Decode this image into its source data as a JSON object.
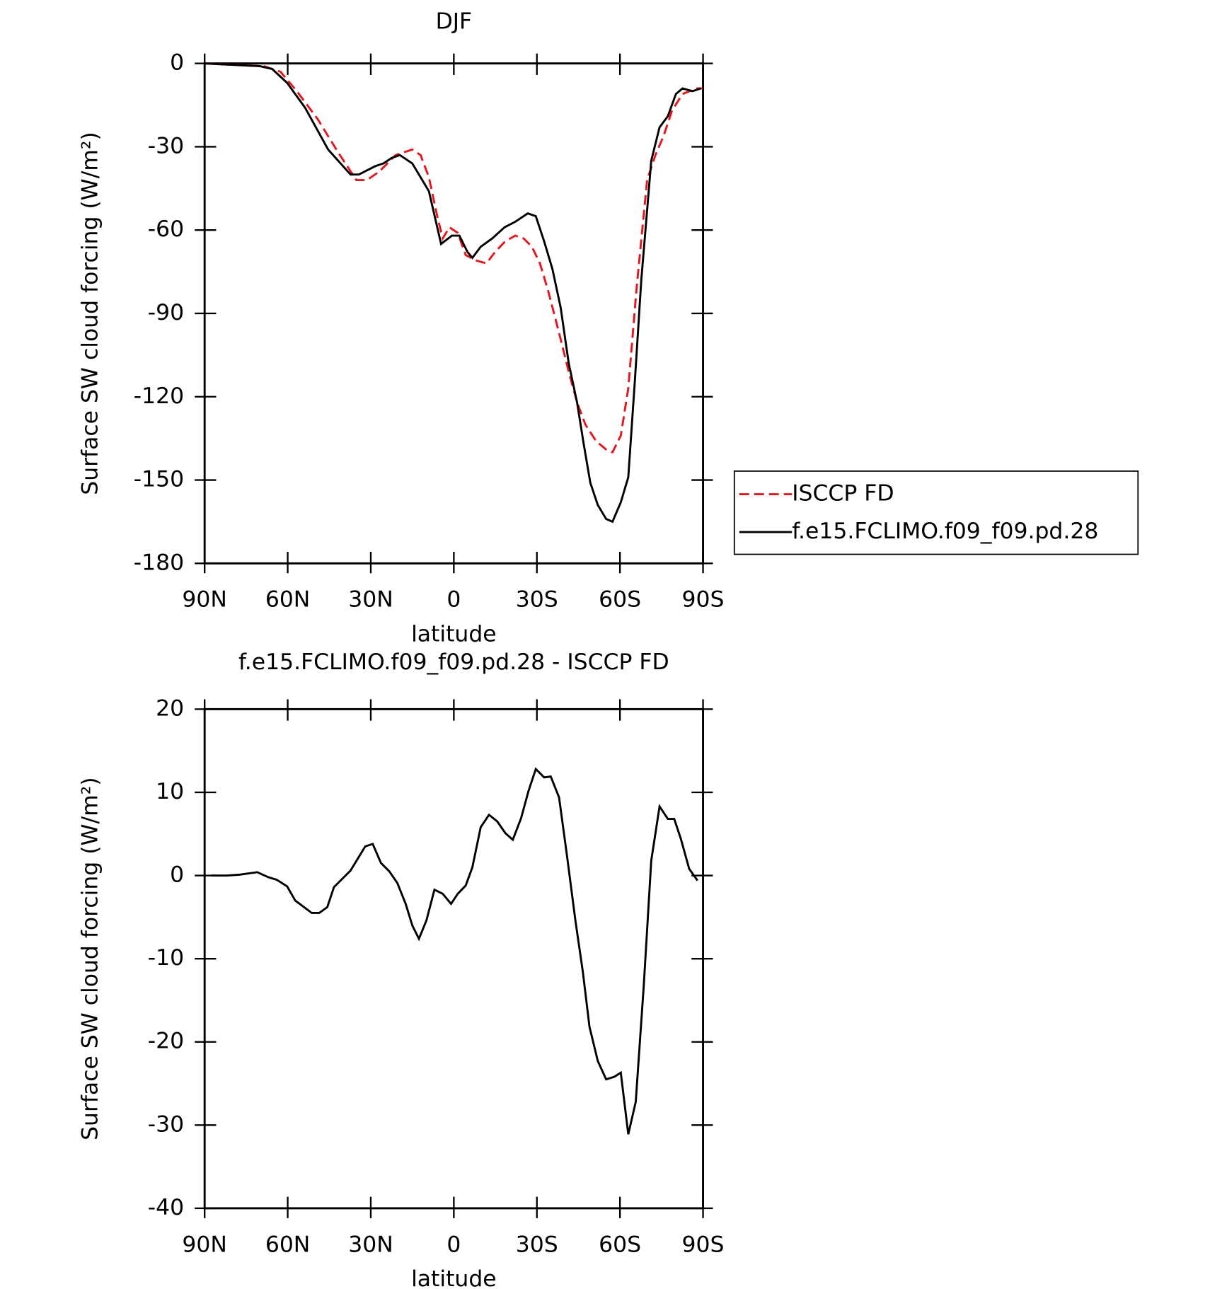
{
  "chart_data": [
    {
      "type": "line",
      "title": "DJF",
      "x_label": "latitude",
      "y_label": "Surface SW cloud forcing (W/m²)",
      "xlim": [
        90,
        -90
      ],
      "xticks": [
        {
          "value": 90,
          "label": "90N"
        },
        {
          "value": 60,
          "label": "60N"
        },
        {
          "value": 30,
          "label": "30N"
        },
        0,
        {
          "value": -30,
          "label": "30S"
        },
        {
          "value": -60,
          "label": "60S"
        },
        {
          "value": -90,
          "label": "90S"
        }
      ],
      "ylim": [
        -180,
        0
      ],
      "yticks": [
        0,
        -30,
        -60,
        -90,
        -120,
        -150,
        -180
      ],
      "legend": "outside-right",
      "series": [
        {
          "name": "ISCCP FD",
          "color": "#e8141b",
          "dash": true,
          "x": [
            90,
            68.6,
            62.6,
            56.7,
            49.2,
            41.8,
            35.2,
            31.4,
            27,
            21,
            15,
            12,
            9,
            6,
            4,
            1.6,
            -1.4,
            -4.3,
            -8.2,
            -11.8,
            -14.8,
            -18.6,
            -22.2,
            -25.2,
            -28.2,
            -31.1,
            -34.1,
            -38,
            -41.5,
            -44.5,
            -47.5,
            -51.4,
            -55,
            -57.3,
            -60.3,
            -63,
            -66,
            -69.8,
            -72.8,
            -75.8,
            -78.8,
            -82.6,
            -87.7,
            -89.8
          ],
          "values": [
            0,
            -1,
            -3,
            -10,
            -20,
            -32,
            -42,
            -42,
            -39,
            -33,
            -31,
            -33,
            -41,
            -55,
            -63,
            -59,
            -61,
            -69,
            -71,
            -72,
            -68,
            -64,
            -62,
            -63,
            -66,
            -72,
            -82,
            -97,
            -111,
            -122,
            -130,
            -136,
            -139,
            -140,
            -134,
            -117,
            -81,
            -42,
            -33,
            -26,
            -17,
            -11,
            -9,
            -9
          ]
        },
        {
          "name": "f.e15.FCLIMO.f09_f09.pd.28",
          "color": "#000000",
          "dash": false,
          "x": [
            90,
            70,
            65.6,
            60.2,
            53.7,
            45.4,
            37.3,
            34.3,
            28.4,
            25.4,
            22.4,
            19.5,
            15,
            9,
            4.6,
            0.7,
            -2,
            -5,
            -6.7,
            -9.7,
            -13.9,
            -18.3,
            -22.2,
            -26.7,
            -29.6,
            -32.6,
            -35.6,
            -38.6,
            -41.5,
            -44.5,
            -46.9,
            -49.3,
            -52,
            -55,
            -57.3,
            -60.3,
            -63,
            -65.4,
            -67.7,
            -71.3,
            -74.3,
            -77.3,
            -80.2,
            -82.6,
            -86.2,
            -89.2
          ],
          "values": [
            0,
            -1,
            -2,
            -7,
            -16,
            -31,
            -40,
            -40,
            -37,
            -36,
            -34,
            -33,
            -36,
            -46,
            -65,
            -62,
            -62,
            -68,
            -70,
            -66,
            -63,
            -59,
            -57,
            -54,
            -55,
            -64,
            -74,
            -88,
            -108,
            -122,
            -137,
            -151,
            -159,
            -164,
            -165,
            -158,
            -149,
            -114,
            -78,
            -35,
            -23,
            -19,
            -11,
            -9,
            -10,
            -9
          ]
        }
      ]
    },
    {
      "type": "line",
      "title": "f.e15.FCLIMO.f09_f09.pd.28 - ISCCP FD",
      "x_label": "latitude",
      "y_label": "Surface SW cloud forcing (W/m²)",
      "xlim": [
        90,
        -90
      ],
      "xticks": [
        {
          "value": 90,
          "label": "90N"
        },
        {
          "value": 60,
          "label": "60N"
        },
        {
          "value": 30,
          "label": "30N"
        },
        0,
        {
          "value": -30,
          "label": "30S"
        },
        {
          "value": -60,
          "label": "60S"
        },
        {
          "value": -90,
          "label": "90S"
        }
      ],
      "ylim": [
        -40,
        20
      ],
      "yticks": [
        20,
        10,
        0,
        -10,
        -20,
        -30,
        -40
      ],
      "series": [
        {
          "color": "#000000",
          "dash": false,
          "x": [
            87.6,
            82,
            77.5,
            71,
            67,
            64,
            60.2,
            57.3,
            51.3,
            48.6,
            45.7,
            43.3,
            37.3,
            32,
            29.3,
            26.3,
            23.3,
            20.4,
            17.4,
            15,
            12.6,
            9.9,
            7,
            4,
            1,
            -1.4,
            -4.3,
            -6.7,
            -9.7,
            -12.7,
            -15.7,
            -18.6,
            -21.3,
            -24.3,
            -27,
            -29.6,
            -32.6,
            -35,
            -38,
            -40.9,
            -43.9,
            -46.6,
            -49,
            -52,
            -55,
            -57.9,
            -60.3,
            -63,
            -65.7,
            -68.6,
            -71.3,
            -74.3,
            -77.3,
            -79.6,
            -82,
            -85,
            -88
          ],
          "values": [
            0,
            0,
            0.1,
            0.4,
            -0.2,
            -0.5,
            -1.3,
            -3,
            -4.5,
            -4.5,
            -3.8,
            -1.4,
            0.6,
            3.5,
            3.8,
            1.5,
            0.5,
            -0.9,
            -3.4,
            -6,
            -7.6,
            -5.4,
            -1.7,
            -2.2,
            -3.4,
            -2.2,
            -1.2,
            1,
            5.8,
            7.3,
            6.5,
            5.1,
            4.3,
            6.9,
            10.2,
            12.8,
            11.8,
            11.9,
            9.4,
            2.3,
            -5.4,
            -11.6,
            -18.2,
            -22.3,
            -24.5,
            -24.2,
            -23.7,
            -31.1,
            -27.2,
            -13.2,
            1.8,
            8.3,
            6.8,
            6.8,
            4.4,
            0.8,
            -0.6
          ]
        }
      ]
    }
  ]
}
